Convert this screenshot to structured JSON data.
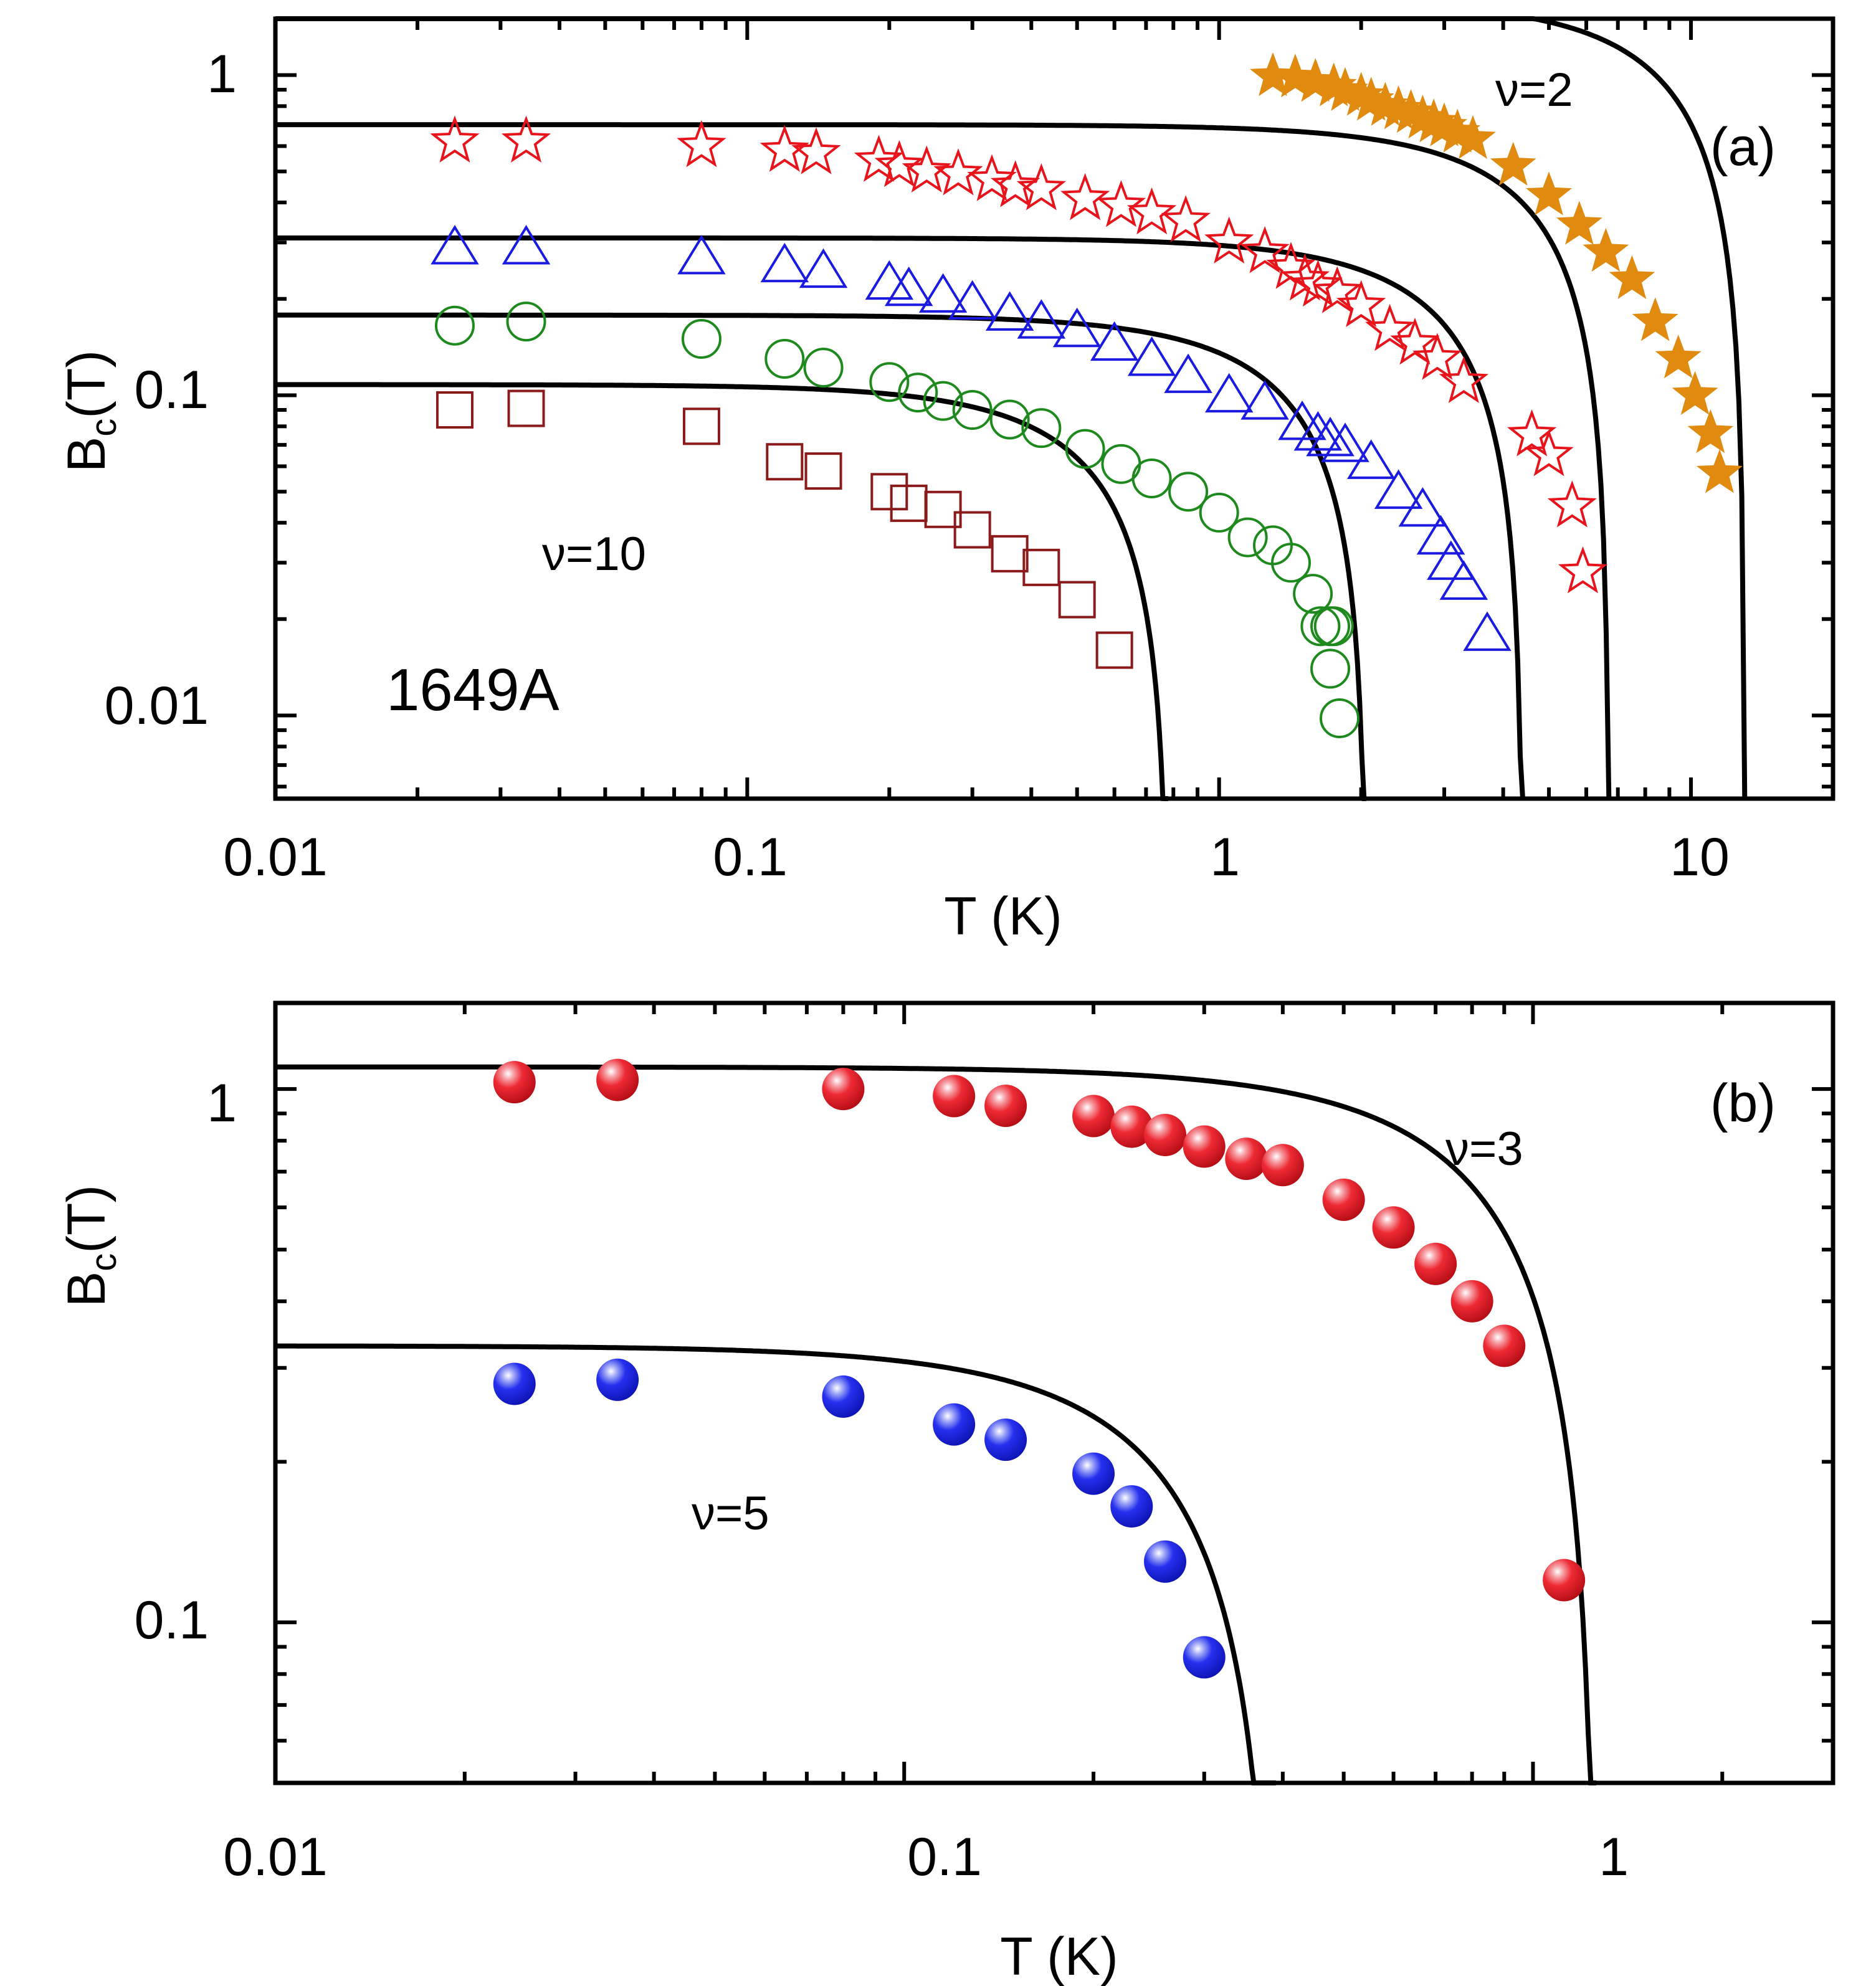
{
  "chart_data": [
    {
      "panel_label": "(a)",
      "type": "scatter",
      "x_scale": "log",
      "y_scale": "log",
      "xlabel": "T (K)",
      "ylabel_main": "B",
      "ylabel_sub": "c",
      "ylabel_tail": "(T)",
      "xlim": [
        0.01,
        20
      ],
      "ylim": [
        0.0055,
        1.5
      ],
      "x_tick_labels": [
        {
          "value": 0.01,
          "label": "0.01"
        },
        {
          "value": 0.1,
          "label": "0.1"
        },
        {
          "value": 1,
          "label": "1"
        },
        {
          "value": 10,
          "label": "10"
        }
      ],
      "y_tick_labels": [
        {
          "value": 0.01,
          "label": "0.01"
        },
        {
          "value": 0.1,
          "label": "0.1"
        },
        {
          "value": 1,
          "label": "1"
        }
      ],
      "annotations": {
        "nu_top": "ν=2",
        "nu_bottom": "ν=10",
        "sample": "1649A"
      },
      "series": [
        {
          "marker": "star-filled",
          "color": "#e08a10",
          "x": [
            1.3,
            1.45,
            1.6,
            1.75,
            1.85,
            2.0,
            2.1,
            2.25,
            2.4,
            2.55,
            2.7,
            2.85,
            3.0,
            3.2,
            3.45,
            4.2,
            5.0,
            5.8,
            6.6,
            7.5,
            8.4,
            9.4,
            10.2,
            11.0,
            11.5
          ],
          "y": [
            0.99,
            0.98,
            0.95,
            0.92,
            0.89,
            0.86,
            0.83,
            0.8,
            0.78,
            0.76,
            0.73,
            0.71,
            0.69,
            0.66,
            0.63,
            0.52,
            0.42,
            0.34,
            0.28,
            0.23,
            0.17,
            0.13,
            0.1,
            0.076,
            0.057
          ]
        },
        {
          "marker": "star-open",
          "color": "#e8141c",
          "x": [
            0.024,
            0.034,
            0.08,
            0.12,
            0.14,
            0.19,
            0.21,
            0.24,
            0.28,
            0.33,
            0.37,
            0.42,
            0.52,
            0.62,
            0.72,
            0.85,
            1.05,
            1.25,
            1.42,
            1.52,
            1.62,
            1.78,
            2.0,
            2.3,
            2.6,
            2.9,
            3.3,
            4.6,
            5.0,
            5.6,
            5.9
          ],
          "y": [
            0.62,
            0.62,
            0.6,
            0.58,
            0.57,
            0.54,
            0.52,
            0.5,
            0.49,
            0.47,
            0.45,
            0.44,
            0.41,
            0.39,
            0.37,
            0.35,
            0.3,
            0.28,
            0.25,
            0.23,
            0.22,
            0.21,
            0.19,
            0.16,
            0.145,
            0.13,
            0.11,
            0.075,
            0.065,
            0.045,
            0.028
          ]
        },
        {
          "marker": "triangle-open",
          "color": "#1a1ae0",
          "x": [
            0.024,
            0.034,
            0.08,
            0.12,
            0.145,
            0.2,
            0.22,
            0.26,
            0.3,
            0.36,
            0.42,
            0.5,
            0.6,
            0.72,
            0.86,
            1.05,
            1.25,
            1.5,
            1.62,
            1.72,
            1.85,
            2.1,
            2.4,
            2.7,
            2.95,
            3.1,
            3.3,
            3.7
          ],
          "y": [
            0.29,
            0.29,
            0.27,
            0.255,
            0.245,
            0.225,
            0.215,
            0.205,
            0.195,
            0.18,
            0.17,
            0.16,
            0.145,
            0.13,
            0.115,
            0.1,
            0.095,
            0.082,
            0.076,
            0.073,
            0.07,
            0.062,
            0.05,
            0.044,
            0.036,
            0.03,
            0.026,
            0.018
          ]
        },
        {
          "marker": "circle-open",
          "color": "#1e8a1e",
          "x": [
            0.024,
            0.034,
            0.08,
            0.12,
            0.145,
            0.2,
            0.23,
            0.26,
            0.3,
            0.36,
            0.42,
            0.52,
            0.62,
            0.72,
            0.86,
            1.0,
            1.15,
            1.3,
            1.42,
            1.58,
            1.64,
            1.72,
            1.75,
            1.72,
            1.8
          ],
          "y": [
            0.165,
            0.17,
            0.15,
            0.13,
            0.122,
            0.11,
            0.102,
            0.096,
            0.09,
            0.084,
            0.079,
            0.068,
            0.061,
            0.055,
            0.05,
            0.043,
            0.036,
            0.034,
            0.03,
            0.024,
            0.019,
            0.019,
            0.019,
            0.014,
            0.0098
          ]
        },
        {
          "marker": "square-open",
          "color": "#8b1a1a",
          "x": [
            0.024,
            0.034,
            0.08,
            0.12,
            0.145,
            0.2,
            0.22,
            0.26,
            0.3,
            0.36,
            0.42,
            0.5,
            0.6
          ],
          "y": [
            0.09,
            0.091,
            0.08,
            0.062,
            0.058,
            0.05,
            0.046,
            0.044,
            0.038,
            0.032,
            0.029,
            0.023,
            0.016
          ]
        }
      ],
      "fits": [
        {
          "B0": 0.7,
          "Tc": 6.7
        },
        {
          "B0": 0.31,
          "Tc": 4.4
        },
        {
          "B0": 0.178,
          "Tc": 2.05
        },
        {
          "B0": 0.108,
          "Tc": 0.78
        },
        {
          "B0": 1.72,
          "Tc": 13.0
        }
      ]
    },
    {
      "panel_label": "(b)",
      "type": "scatter",
      "x_scale": "log",
      "y_scale": "log",
      "xlabel": "T (K)",
      "ylabel_main": "B",
      "ylabel_sub": "c",
      "ylabel_tail": "(T)",
      "xlim": [
        0.01,
        3
      ],
      "ylim": [
        0.05,
        1.45
      ],
      "x_tick_labels": [
        {
          "value": 0.01,
          "label": "0.01"
        },
        {
          "value": 0.1,
          "label": "0.1"
        },
        {
          "value": 1,
          "label": "1"
        }
      ],
      "y_tick_labels": [
        {
          "value": 0.1,
          "label": "0.1"
        },
        {
          "value": 1,
          "label": "1"
        }
      ],
      "annotations": {
        "nu_top": "ν=3",
        "nu_bottom": "ν=5"
      },
      "series": [
        {
          "marker": "sphere",
          "color": "#e8141c",
          "x": [
            0.024,
            0.035,
            0.08,
            0.12,
            0.145,
            0.2,
            0.23,
            0.26,
            0.3,
            0.35,
            0.4,
            0.5,
            0.6,
            0.7,
            0.8,
            0.9,
            1.12
          ],
          "y": [
            1.03,
            1.04,
            1.0,
            0.97,
            0.93,
            0.89,
            0.85,
            0.82,
            0.78,
            0.74,
            0.72,
            0.62,
            0.55,
            0.47,
            0.4,
            0.33,
            0.12
          ]
        },
        {
          "marker": "sphere",
          "color": "#1a1ae0",
          "x": [
            0.024,
            0.035,
            0.08,
            0.12,
            0.145,
            0.2,
            0.23,
            0.26,
            0.3
          ],
          "y": [
            0.28,
            0.285,
            0.265,
            0.235,
            0.22,
            0.19,
            0.165,
            0.13,
            0.086
          ]
        }
      ],
      "fits": [
        {
          "B0": 1.1,
          "Tc": 1.26
        },
        {
          "B0": 0.33,
          "Tc": 0.39
        }
      ]
    }
  ]
}
